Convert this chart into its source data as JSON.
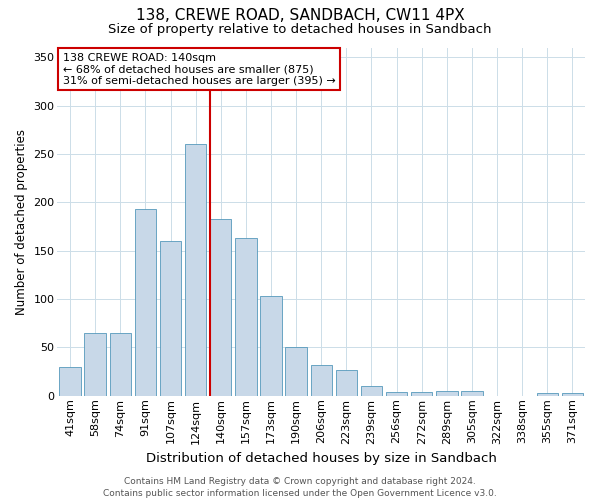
{
  "title1": "138, CREWE ROAD, SANDBACH, CW11 4PX",
  "title2": "Size of property relative to detached houses in Sandbach",
  "xlabel": "Distribution of detached houses by size in Sandbach",
  "ylabel": "Number of detached properties",
  "categories": [
    "41sqm",
    "58sqm",
    "74sqm",
    "91sqm",
    "107sqm",
    "124sqm",
    "140sqm",
    "157sqm",
    "173sqm",
    "190sqm",
    "206sqm",
    "223sqm",
    "239sqm",
    "256sqm",
    "272sqm",
    "289sqm",
    "305sqm",
    "322sqm",
    "338sqm",
    "355sqm",
    "371sqm"
  ],
  "values": [
    30,
    65,
    65,
    193,
    160,
    260,
    183,
    163,
    103,
    50,
    32,
    27,
    10,
    4,
    4,
    5,
    5,
    0,
    0,
    3,
    3
  ],
  "highlight_index": 6,
  "highlight_color": "#cc0000",
  "bar_color": "#c8d8e8",
  "bar_edge_color": "#5599bb",
  "annotation_text": "138 CREWE ROAD: 140sqm\n← 68% of detached houses are smaller (875)\n31% of semi-detached houses are larger (395) →",
  "annotation_box_color": "#ffffff",
  "annotation_box_edge_color": "#cc0000",
  "ylim": [
    0,
    360
  ],
  "yticks": [
    0,
    50,
    100,
    150,
    200,
    250,
    300,
    350
  ],
  "footer1": "Contains HM Land Registry data © Crown copyright and database right 2024.",
  "footer2": "Contains public sector information licensed under the Open Government Licence v3.0.",
  "bg_color": "#ffffff",
  "grid_color": "#ccdde8",
  "title1_fontsize": 11,
  "title2_fontsize": 9.5,
  "xlabel_fontsize": 9.5,
  "ylabel_fontsize": 8.5,
  "tick_fontsize": 8,
  "footer_fontsize": 6.5
}
